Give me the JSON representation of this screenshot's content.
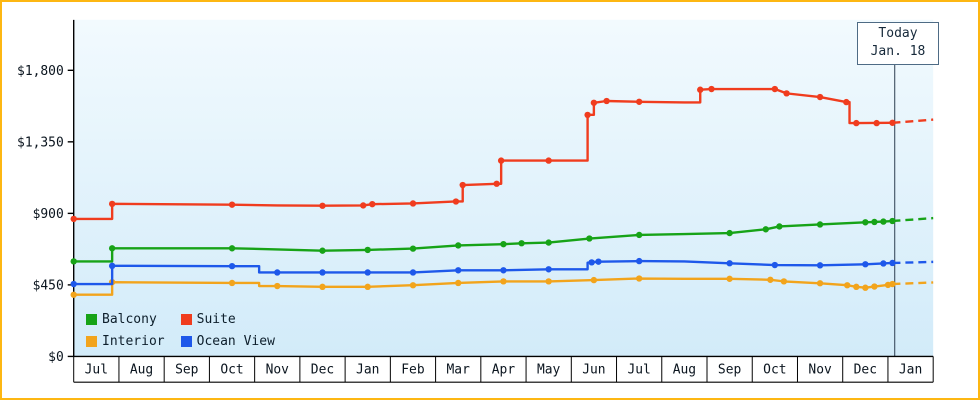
{
  "chart_data": {
    "type": "line",
    "title": "",
    "currency": "$",
    "y_ticks": [
      {
        "v": 0,
        "label": "$0"
      },
      {
        "v": 450,
        "label": "$450"
      },
      {
        "v": 900,
        "label": "$900"
      },
      {
        "v": 1350,
        "label": "$1,350"
      },
      {
        "v": 1800,
        "label": "$1,800"
      }
    ],
    "ylim": [
      0,
      2100
    ],
    "months": [
      "Jul",
      "Aug",
      "Sep",
      "Oct",
      "Nov",
      "Dec",
      "Jan",
      "Feb",
      "Mar",
      "Apr",
      "May",
      "Jun",
      "Jul",
      "Aug",
      "Sep",
      "Oct",
      "Nov",
      "Dec",
      "Jan"
    ],
    "today": {
      "line1": "Today",
      "line2": "Jan. 18",
      "x": 18.15
    },
    "legend": {
      "position": "bottom-left",
      "items": [
        {
          "label": "Balcony",
          "color": "#17a317"
        },
        {
          "label": "Suite",
          "color": "#f03c1e"
        },
        {
          "label": "Interior",
          "color": "#f2a41c"
        },
        {
          "label": "Ocean View",
          "color": "#1e58ea"
        }
      ]
    },
    "series": [
      {
        "name": "Balcony",
        "color": "#17a317",
        "points": [
          [
            0,
            598
          ],
          [
            0.85,
            598
          ],
          [
            0.85,
            680
          ],
          [
            3.5,
            680
          ],
          [
            4.5,
            673
          ],
          [
            5.5,
            665
          ],
          [
            6.5,
            670
          ],
          [
            7.5,
            678
          ],
          [
            8.5,
            698
          ],
          [
            9.5,
            706
          ],
          [
            9.9,
            712
          ],
          [
            10.5,
            716
          ],
          [
            11.4,
            742
          ],
          [
            12.5,
            764
          ],
          [
            13.5,
            770
          ],
          [
            14.5,
            776
          ],
          [
            15.3,
            800
          ],
          [
            15.6,
            818
          ],
          [
            16.5,
            830
          ],
          [
            17.5,
            844
          ],
          [
            17.9,
            848
          ],
          [
            18.1,
            852
          ]
        ],
        "dots": [
          [
            0,
            598
          ],
          [
            0.85,
            680
          ],
          [
            3.5,
            680
          ],
          [
            5.5,
            665
          ],
          [
            6.5,
            670
          ],
          [
            7.5,
            678
          ],
          [
            8.5,
            698
          ],
          [
            9.5,
            706
          ],
          [
            9.9,
            712
          ],
          [
            10.5,
            716
          ],
          [
            11.4,
            742
          ],
          [
            12.5,
            764
          ],
          [
            14.5,
            776
          ],
          [
            15.3,
            800
          ],
          [
            15.6,
            818
          ],
          [
            16.5,
            830
          ],
          [
            17.5,
            844
          ],
          [
            17.7,
            846
          ],
          [
            17.9,
            848
          ],
          [
            18.1,
            852
          ]
        ],
        "dashed": [
          [
            18.1,
            852
          ],
          [
            19,
            870
          ]
        ]
      },
      {
        "name": "Suite",
        "color": "#f03c1e",
        "points": [
          [
            0,
            865
          ],
          [
            0.85,
            865
          ],
          [
            0.85,
            960
          ],
          [
            3.5,
            955
          ],
          [
            4.5,
            950
          ],
          [
            5.5,
            948
          ],
          [
            6.4,
            950
          ],
          [
            6.6,
            958
          ],
          [
            7.5,
            962
          ],
          [
            8.45,
            975
          ],
          [
            8.6,
            975
          ],
          [
            8.6,
            1078
          ],
          [
            9.35,
            1086
          ],
          [
            9.45,
            1086
          ],
          [
            9.45,
            1232
          ],
          [
            10.5,
            1232
          ],
          [
            11.36,
            1232
          ],
          [
            11.36,
            1520
          ],
          [
            11.5,
            1520
          ],
          [
            11.5,
            1596
          ],
          [
            11.78,
            1607
          ],
          [
            12.5,
            1602
          ],
          [
            13.5,
            1598
          ],
          [
            13.85,
            1598
          ],
          [
            13.85,
            1678
          ],
          [
            14.1,
            1682
          ],
          [
            15.5,
            1682
          ],
          [
            15.76,
            1655
          ],
          [
            16.5,
            1632
          ],
          [
            17.08,
            1600
          ],
          [
            17.15,
            1600
          ],
          [
            17.15,
            1468
          ],
          [
            17.3,
            1468
          ],
          [
            18.1,
            1470
          ]
        ],
        "dots": [
          [
            0,
            865
          ],
          [
            0.85,
            960
          ],
          [
            3.5,
            955
          ],
          [
            5.5,
            948
          ],
          [
            6.4,
            950
          ],
          [
            6.6,
            958
          ],
          [
            7.5,
            962
          ],
          [
            8.45,
            975
          ],
          [
            8.6,
            1078
          ],
          [
            9.35,
            1086
          ],
          [
            9.45,
            1232
          ],
          [
            10.5,
            1232
          ],
          [
            11.36,
            1520
          ],
          [
            11.5,
            1596
          ],
          [
            11.78,
            1607
          ],
          [
            12.5,
            1602
          ],
          [
            13.85,
            1678
          ],
          [
            14.1,
            1682
          ],
          [
            15.5,
            1682
          ],
          [
            15.76,
            1655
          ],
          [
            16.5,
            1632
          ],
          [
            17.08,
            1600
          ],
          [
            17.3,
            1468
          ],
          [
            17.75,
            1468
          ],
          [
            18.1,
            1470
          ]
        ],
        "dashed": [
          [
            18.1,
            1470
          ],
          [
            19,
            1490
          ]
        ]
      },
      {
        "name": "Interior",
        "color": "#f2a41c",
        "points": [
          [
            0,
            388
          ],
          [
            0.85,
            388
          ],
          [
            0.85,
            467
          ],
          [
            3.5,
            462
          ],
          [
            4.1,
            462
          ],
          [
            4.1,
            443
          ],
          [
            4.5,
            443
          ],
          [
            5.5,
            438
          ],
          [
            6.5,
            438
          ],
          [
            7.5,
            448
          ],
          [
            8.5,
            462
          ],
          [
            9.5,
            472
          ],
          [
            10.5,
            472
          ],
          [
            11.5,
            480
          ],
          [
            12.5,
            490
          ],
          [
            13.5,
            488
          ],
          [
            14.5,
            488
          ],
          [
            15.4,
            482
          ],
          [
            15.7,
            472
          ],
          [
            16.5,
            460
          ],
          [
            17.1,
            448
          ],
          [
            17.3,
            438
          ],
          [
            17.5,
            432
          ],
          [
            17.7,
            440
          ],
          [
            18.0,
            450
          ],
          [
            18.1,
            455
          ]
        ],
        "dots": [
          [
            0,
            388
          ],
          [
            0.85,
            467
          ],
          [
            3.5,
            462
          ],
          [
            4.5,
            443
          ],
          [
            5.5,
            438
          ],
          [
            6.5,
            438
          ],
          [
            7.5,
            448
          ],
          [
            8.5,
            462
          ],
          [
            9.5,
            472
          ],
          [
            10.5,
            472
          ],
          [
            11.5,
            480
          ],
          [
            12.5,
            490
          ],
          [
            14.5,
            488
          ],
          [
            15.4,
            482
          ],
          [
            15.7,
            472
          ],
          [
            16.5,
            460
          ],
          [
            17.1,
            448
          ],
          [
            17.3,
            438
          ],
          [
            17.5,
            432
          ],
          [
            17.7,
            440
          ],
          [
            18.0,
            450
          ],
          [
            18.1,
            455
          ]
        ],
        "dashed": [
          [
            18.1,
            455
          ],
          [
            19,
            465
          ]
        ]
      },
      {
        "name": "Ocean View",
        "color": "#1e58ea",
        "points": [
          [
            0,
            455
          ],
          [
            0.85,
            455
          ],
          [
            0.85,
            570
          ],
          [
            3.5,
            568
          ],
          [
            4.1,
            568
          ],
          [
            4.1,
            528
          ],
          [
            5.5,
            528
          ],
          [
            6.5,
            528
          ],
          [
            7.5,
            528
          ],
          [
            8.5,
            542
          ],
          [
            9.5,
            542
          ],
          [
            10.5,
            548
          ],
          [
            11.36,
            548
          ],
          [
            11.36,
            590
          ],
          [
            11.6,
            596
          ],
          [
            12.5,
            600
          ],
          [
            13.5,
            598
          ],
          [
            14.5,
            586
          ],
          [
            15.5,
            575
          ],
          [
            16.5,
            573
          ],
          [
            17.5,
            580
          ],
          [
            17.9,
            585
          ],
          [
            18.1,
            588
          ]
        ],
        "dots": [
          [
            0,
            455
          ],
          [
            0.85,
            570
          ],
          [
            3.5,
            568
          ],
          [
            4.5,
            528
          ],
          [
            5.5,
            528
          ],
          [
            6.5,
            528
          ],
          [
            7.5,
            528
          ],
          [
            8.5,
            542
          ],
          [
            9.5,
            542
          ],
          [
            10.5,
            548
          ],
          [
            11.45,
            592
          ],
          [
            11.6,
            596
          ],
          [
            12.5,
            600
          ],
          [
            14.5,
            586
          ],
          [
            15.5,
            575
          ],
          [
            16.5,
            573
          ],
          [
            17.5,
            580
          ],
          [
            17.9,
            585
          ],
          [
            18.1,
            588
          ]
        ],
        "dashed": [
          [
            18.1,
            588
          ],
          [
            19,
            595
          ]
        ]
      }
    ],
    "colors": {
      "frame_border": "#fdb713",
      "plot_bg_top": "#f2fafe",
      "plot_bg_bottom": "#d2ebf9",
      "axis": "#000000",
      "today_line": "#2c3e50"
    }
  }
}
